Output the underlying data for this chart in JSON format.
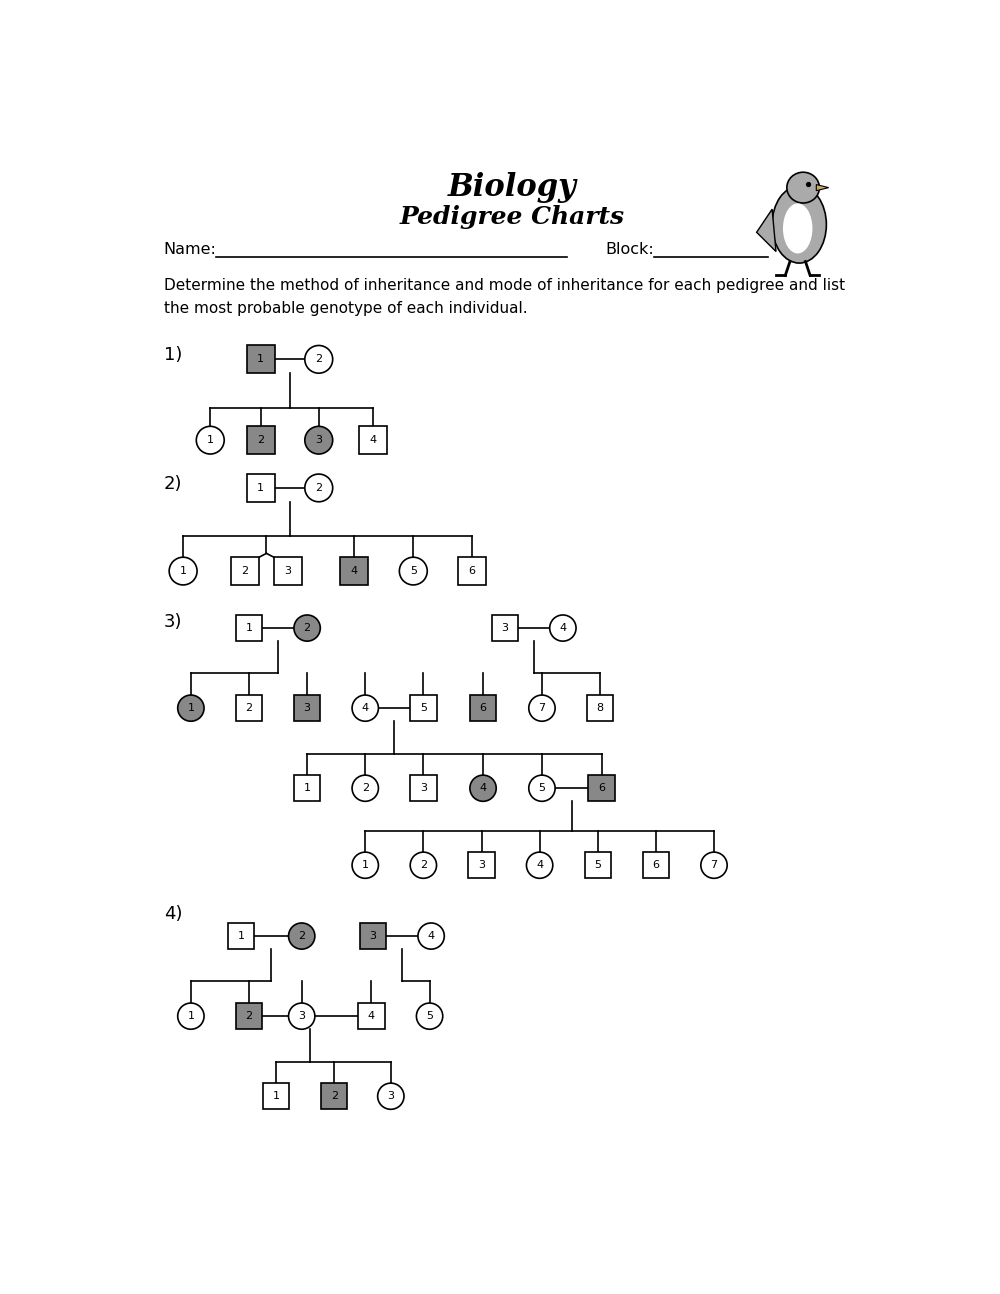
{
  "title1": "Biology",
  "title2": "Pedigree Charts",
  "background_color": "#ffffff",
  "filled_color": "#888888",
  "line_color": "#000000",
  "instructions": "Determine the method of inheritance and mode of inheritance for each pedigree and list\nthe most probable genotype of each individual."
}
